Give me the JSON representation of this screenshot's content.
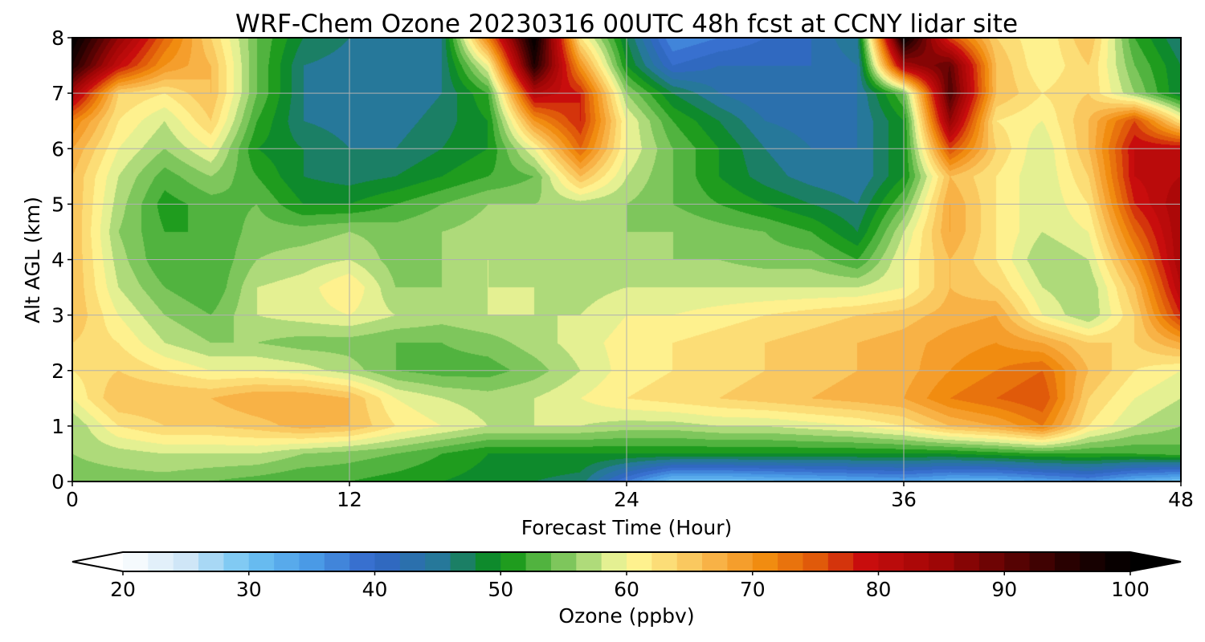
{
  "chart_data": {
    "type": "heatmap",
    "title": "WRF-Chem Ozone  20230316 00UTC 48h fcst at CCNY lidar site",
    "xlabel": "Forecast Time (Hour)",
    "ylabel": "Alt AGL (km)",
    "xlim": [
      0,
      48
    ],
    "ylim": [
      0,
      8
    ],
    "xticks": [
      0,
      12,
      24,
      36,
      48
    ],
    "yticks": [
      0,
      1,
      2,
      3,
      4,
      5,
      6,
      7,
      8
    ],
    "grid": true,
    "x": [
      0,
      2,
      4,
      6,
      8,
      10,
      12,
      14,
      16,
      18,
      20,
      22,
      24,
      26,
      28,
      30,
      32,
      34,
      36,
      38,
      40,
      42,
      44,
      46,
      48
    ],
    "y": [
      0,
      0.5,
      1,
      1.5,
      2,
      2.5,
      3,
      3.5,
      4,
      4.5,
      5,
      5.5,
      6,
      6.5,
      7,
      7.5,
      8
    ],
    "z": [
      [
        55,
        55,
        55,
        54,
        53,
        52,
        52,
        51,
        50,
        49,
        48,
        47,
        38,
        30,
        30,
        31,
        32,
        33,
        34,
        32,
        32,
        34,
        36,
        32,
        30
      ],
      [
        56,
        57,
        58,
        58,
        58,
        56,
        55,
        54,
        52,
        50,
        50,
        50,
        50,
        50,
        50,
        50,
        50,
        50,
        50,
        50,
        51,
        52,
        52,
        52,
        53
      ],
      [
        56,
        62,
        64,
        64,
        65,
        67,
        66,
        62,
        60,
        58,
        58,
        58,
        57,
        57,
        58,
        58,
        59,
        60,
        62,
        66,
        68,
        72,
        62,
        58,
        56
      ],
      [
        60,
        66,
        66,
        66,
        68,
        68,
        66,
        60,
        58,
        57,
        58,
        60,
        62,
        63,
        64,
        65,
        66,
        67,
        68,
        72,
        74,
        76,
        64,
        60,
        58
      ],
      [
        62,
        64,
        62,
        60,
        60,
        59,
        57,
        54,
        53,
        53,
        55,
        58,
        61,
        62,
        63,
        64,
        65,
        66,
        67,
        70,
        72,
        74,
        66,
        62,
        60
      ],
      [
        64,
        62,
        58,
        56,
        56,
        55,
        55,
        54,
        54,
        55,
        57,
        59,
        61,
        62,
        63,
        64,
        65,
        66,
        67,
        69,
        70,
        68,
        64,
        64,
        68
      ],
      [
        66,
        60,
        56,
        54,
        58,
        59,
        60,
        58,
        57,
        58,
        58,
        58,
        60,
        60,
        61,
        62,
        63,
        64,
        65,
        67,
        68,
        60,
        56,
        64,
        78
      ],
      [
        66,
        58,
        54,
        52,
        58,
        59,
        62,
        56,
        56,
        58,
        58,
        57,
        58,
        58,
        58,
        58,
        58,
        58,
        60,
        66,
        64,
        58,
        56,
        66,
        82
      ],
      [
        66,
        57,
        52,
        52,
        56,
        57,
        58,
        55,
        56,
        58,
        57,
        56,
        56,
        56,
        56,
        55,
        55,
        52,
        60,
        66,
        62,
        56,
        58,
        70,
        84
      ],
      [
        66,
        56,
        52,
        52,
        55,
        55,
        56,
        55,
        56,
        57,
        57,
        56,
        56,
        56,
        55,
        54,
        52,
        48,
        58,
        68,
        62,
        58,
        60,
        74,
        84
      ],
      [
        66,
        57,
        51,
        53,
        54,
        50,
        50,
        52,
        54,
        56,
        56,
        57,
        56,
        54,
        52,
        50,
        48,
        46,
        54,
        68,
        62,
        58,
        62,
        78,
        84
      ],
      [
        66,
        58,
        53,
        56,
        52,
        48,
        47,
        48,
        50,
        52,
        54,
        66,
        58,
        54,
        50,
        47,
        45,
        44,
        50,
        66,
        62,
        58,
        64,
        80,
        82
      ],
      [
        68,
        60,
        56,
        60,
        50,
        48,
        46,
        46,
        48,
        50,
        60,
        74,
        60,
        54,
        50,
        46,
        44,
        44,
        50,
        76,
        64,
        58,
        66,
        80,
        80
      ],
      [
        72,
        62,
        58,
        64,
        52,
        46,
        45,
        45,
        47,
        50,
        70,
        78,
        60,
        52,
        48,
        44,
        43,
        44,
        50,
        86,
        62,
        60,
        66,
        76,
        62
      ],
      [
        84,
        64,
        62,
        66,
        54,
        46,
        44,
        44,
        46,
        52,
        82,
        78,
        56,
        48,
        44,
        42,
        42,
        44,
        54,
        92,
        66,
        62,
        64,
        56,
        48
      ],
      [
        96,
        80,
        70,
        66,
        54,
        46,
        45,
        44,
        46,
        60,
        96,
        70,
        50,
        40,
        42,
        42,
        42,
        44,
        84,
        90,
        66,
        60,
        64,
        54,
        48
      ],
      [
        100,
        86,
        74,
        64,
        54,
        48,
        46,
        45,
        46,
        72,
        100,
        62,
        48,
        36,
        38,
        40,
        42,
        46,
        100,
        76,
        64,
        60,
        66,
        52,
        46
      ]
    ],
    "colorbar": {
      "label": "Ozone  (ppbv)",
      "min": 20,
      "max": 100,
      "ticks": [
        "20",
        "30",
        "40",
        "50",
        "60",
        "70",
        "80",
        "90",
        "100"
      ],
      "extend": "both",
      "colormap_stops": [
        {
          "v": 20,
          "c": "#ffffff"
        },
        {
          "v": 25,
          "c": "#cfe6f7"
        },
        {
          "v": 30,
          "c": "#6ec3f2"
        },
        {
          "v": 35,
          "c": "#4a9ae6"
        },
        {
          "v": 40,
          "c": "#3365c9"
        },
        {
          "v": 45,
          "c": "#26789a"
        },
        {
          "v": 48,
          "c": "#16834a"
        },
        {
          "v": 50,
          "c": "#06910e"
        },
        {
          "v": 53,
          "c": "#51b33f"
        },
        {
          "v": 56,
          "c": "#95d06a"
        },
        {
          "v": 58,
          "c": "#c8e58a"
        },
        {
          "v": 60,
          "c": "#fffb99"
        },
        {
          "v": 64,
          "c": "#fbd36b"
        },
        {
          "v": 68,
          "c": "#f7a73a"
        },
        {
          "v": 71,
          "c": "#f18c10"
        },
        {
          "v": 75,
          "c": "#e05a0a"
        },
        {
          "v": 79,
          "c": "#c80d0d"
        },
        {
          "v": 85,
          "c": "#9e0606"
        },
        {
          "v": 91,
          "c": "#560303"
        },
        {
          "v": 96,
          "c": "#1e0101"
        },
        {
          "v": 100,
          "c": "#000000"
        }
      ]
    }
  }
}
